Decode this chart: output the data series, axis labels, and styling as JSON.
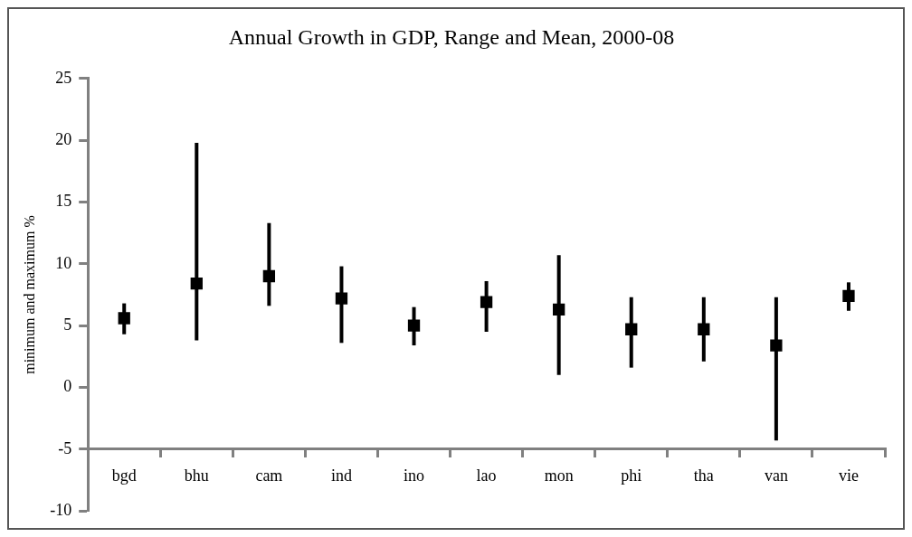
{
  "chart_data": {
    "type": "scatter",
    "title": "Annual Growth in GDP, Range and Mean, 2000-08",
    "ylabel": "minimum and maximum %",
    "categories": [
      "bgd",
      "bhu",
      "cam",
      "ind",
      "ino",
      "lao",
      "mon",
      "phi",
      "tha",
      "van",
      "vie"
    ],
    "series": [
      {
        "color": "#000000",
        "values": [
          5.6,
          8.4,
          9.0,
          7.2,
          5.0,
          6.9,
          6.3,
          4.7,
          4.7,
          3.4,
          7.4
        ],
        "errors": [
          [
            4.3,
            6.8
          ],
          [
            3.8,
            19.8
          ],
          [
            6.6,
            13.3
          ],
          [
            3.6,
            9.8
          ],
          [
            3.4,
            6.5
          ],
          [
            4.5,
            8.6
          ],
          [
            1.0,
            10.7
          ],
          [
            1.6,
            7.3
          ],
          [
            2.1,
            7.3
          ],
          [
            -4.3,
            7.3
          ],
          [
            6.2,
            8.5
          ]
        ]
      }
    ],
    "ylim": [
      -10,
      25
    ],
    "yticks": [
      -10,
      -5,
      0,
      5,
      10,
      15,
      20,
      25
    ],
    "grid": false,
    "marker": "square"
  }
}
